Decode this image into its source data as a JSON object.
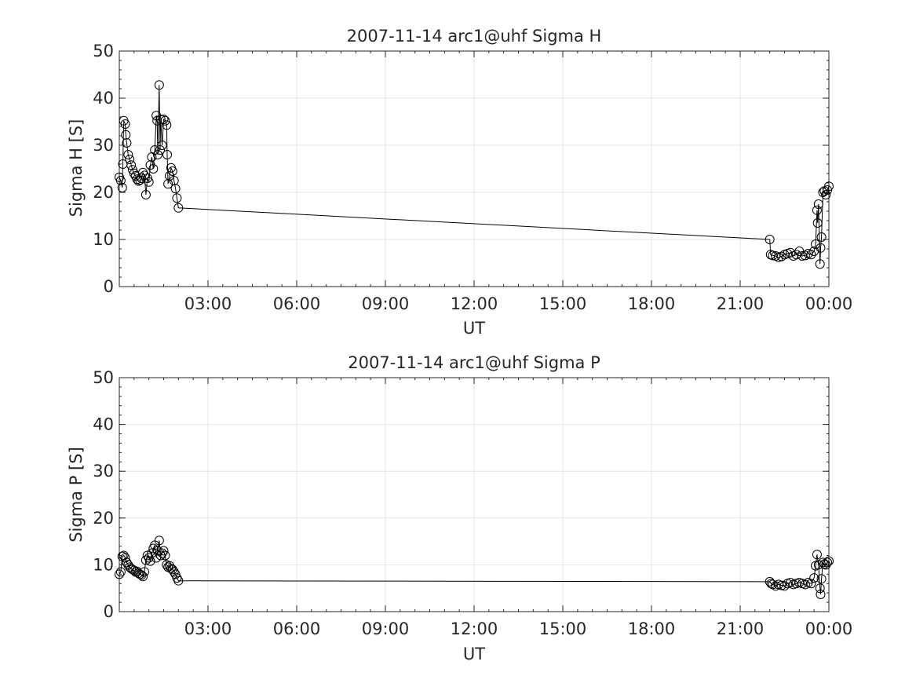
{
  "chart_data": [
    {
      "type": "line",
      "title": "2007-11-14  arc1@uhf Sigma H",
      "xlabel": "UT",
      "ylabel": "Sigma H [S]",
      "xlim": [
        0,
        24
      ],
      "ylim": [
        0,
        50
      ],
      "xticks": [
        3,
        6,
        9,
        12,
        15,
        18,
        21,
        24
      ],
      "xtick_labels": [
        "03:00",
        "06:00",
        "09:00",
        "12:00",
        "15:00",
        "18:00",
        "21:00",
        "00:00"
      ],
      "yticks": [
        0,
        10,
        20,
        30,
        40,
        50
      ],
      "ytick_labels": [
        "0",
        "10",
        "20",
        "30",
        "40",
        "50"
      ],
      "grid": true,
      "marker": "open-circle",
      "series": [
        {
          "x": [
            0.0,
            0.05,
            0.1,
            0.12,
            0.15,
            0.2,
            0.22,
            0.25,
            0.3,
            0.35,
            0.4,
            0.45,
            0.5,
            0.55,
            0.6,
            0.65,
            0.7,
            0.75,
            0.8,
            0.85,
            0.9,
            0.95,
            1.0,
            1.05,
            1.1,
            1.15,
            1.2,
            1.25,
            1.28,
            1.3,
            1.35,
            1.38,
            1.4,
            1.45,
            1.5,
            1.55,
            1.6,
            1.62,
            1.65,
            1.7,
            1.75,
            1.8,
            1.85,
            1.9,
            1.95,
            2.0,
            22.0,
            22.03,
            22.1,
            22.2,
            22.3,
            22.4,
            22.5,
            22.6,
            22.7,
            22.8,
            22.9,
            23.0,
            23.1,
            23.2,
            23.3,
            23.4,
            23.5,
            23.55,
            23.6,
            23.62,
            23.65,
            23.7,
            23.72,
            23.75,
            23.8,
            23.85,
            23.9,
            23.95,
            24.0
          ],
          "y": [
            23.2,
            22.5,
            21.0,
            26.0,
            35.2,
            34.5,
            32.2,
            30.5,
            28.0,
            27.0,
            25.8,
            24.8,
            24.0,
            23.5,
            22.8,
            22.4,
            22.6,
            23.0,
            24.2,
            23.6,
            19.5,
            23.0,
            22.2,
            25.8,
            27.5,
            25.0,
            29.0,
            36.3,
            35.2,
            28.0,
            42.8,
            29.0,
            35.5,
            30.0,
            35.5,
            35.2,
            34.3,
            28.0,
            21.8,
            23.5,
            25.2,
            24.5,
            22.5,
            20.8,
            18.8,
            16.7,
            10.0,
            6.8,
            6.6,
            6.5,
            6.2,
            6.4,
            6.8,
            7.0,
            7.2,
            6.5,
            6.8,
            7.5,
            6.5,
            6.6,
            7.0,
            6.8,
            7.5,
            9.0,
            16.2,
            13.5,
            17.5,
            4.8,
            8.2,
            10.5,
            20.0,
            20.3,
            19.5,
            20.5,
            21.3
          ]
        }
      ]
    },
    {
      "type": "line",
      "title": "2007-11-14  arc1@uhf Sigma P",
      "xlabel": "UT",
      "ylabel": "Sigma P [S]",
      "xlim": [
        0,
        24
      ],
      "ylim": [
        0,
        50
      ],
      "xticks": [
        3,
        6,
        9,
        12,
        15,
        18,
        21,
        24
      ],
      "xtick_labels": [
        "03:00",
        "06:00",
        "09:00",
        "12:00",
        "15:00",
        "18:00",
        "21:00",
        "00:00"
      ],
      "yticks": [
        0,
        10,
        20,
        30,
        40,
        50
      ],
      "ytick_labels": [
        "0",
        "10",
        "20",
        "30",
        "40",
        "50"
      ],
      "grid": true,
      "marker": "open-circle",
      "series": [
        {
          "x": [
            0.0,
            0.05,
            0.1,
            0.15,
            0.2,
            0.25,
            0.3,
            0.35,
            0.4,
            0.45,
            0.5,
            0.55,
            0.6,
            0.65,
            0.7,
            0.75,
            0.8,
            0.85,
            0.9,
            0.95,
            1.0,
            1.05,
            1.1,
            1.15,
            1.2,
            1.25,
            1.3,
            1.35,
            1.4,
            1.45,
            1.5,
            1.55,
            1.6,
            1.65,
            1.7,
            1.75,
            1.8,
            1.85,
            1.9,
            1.95,
            2.0,
            22.0,
            22.05,
            22.1,
            22.2,
            22.3,
            22.4,
            22.5,
            22.6,
            22.7,
            22.8,
            22.9,
            23.0,
            23.1,
            23.2,
            23.3,
            23.4,
            23.5,
            23.55,
            23.6,
            23.65,
            23.7,
            23.72,
            23.75,
            23.8,
            23.85,
            23.9,
            23.95,
            24.0
          ],
          "y": [
            8.0,
            8.5,
            11.8,
            12.0,
            11.5,
            10.5,
            10.0,
            9.5,
            9.2,
            9.0,
            8.8,
            8.5,
            8.6,
            8.2,
            8.0,
            7.8,
            7.5,
            8.5,
            11.0,
            12.0,
            11.5,
            10.8,
            12.5,
            13.5,
            14.2,
            11.5,
            13.0,
            15.2,
            12.0,
            12.5,
            13.0,
            12.0,
            10.0,
            9.5,
            9.8,
            9.2,
            9.0,
            8.5,
            8.0,
            7.2,
            6.6,
            6.4,
            6.0,
            5.8,
            5.5,
            5.8,
            5.6,
            5.5,
            6.0,
            6.2,
            5.8,
            6.0,
            6.2,
            6.0,
            5.8,
            6.2,
            6.0,
            7.2,
            9.8,
            12.2,
            10.0,
            5.0,
            3.7,
            7.0,
            10.5,
            10.2,
            10.0,
            10.5,
            10.8
          ]
        }
      ]
    }
  ]
}
